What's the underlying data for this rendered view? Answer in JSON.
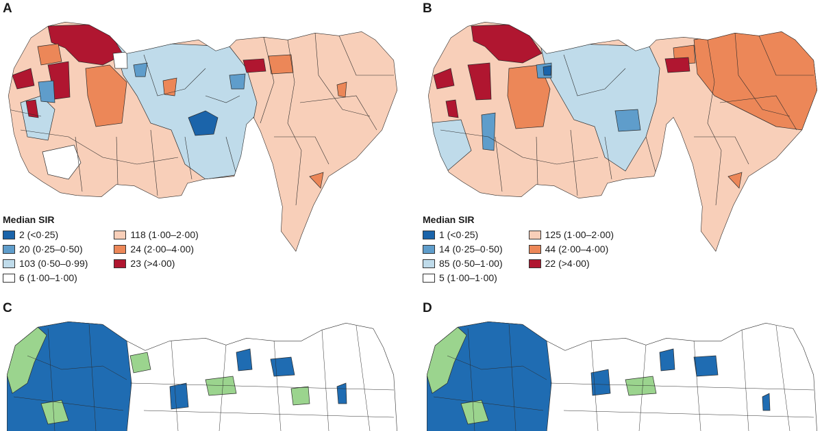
{
  "colors": {
    "very_low": "#1b64aa",
    "low": "#5f9dcb",
    "below": "#bfdbea",
    "neutral": "#ffffff",
    "above": "#f8cfb9",
    "high": "#ec8758",
    "very_high": "#b01630",
    "cluster_blue": "#1f6cb2",
    "cluster_green": "#9bd48e",
    "border": "#2a2a2a"
  },
  "panels": [
    {
      "letter": "A",
      "legend": {
        "title": "Median SIR",
        "items": [
          {
            "label": "2 (<0·25)",
            "color_key": "very_low"
          },
          {
            "label": "20 (0·25–0·50)",
            "color_key": "low"
          },
          {
            "label": "103 (0·50–0·99)",
            "color_key": "below"
          },
          {
            "label": "6 (1·00–1·00)",
            "color_key": "neutral"
          },
          {
            "label": "118 (1·00–2·00)",
            "color_key": "above"
          },
          {
            "label": "24 (2·00–4·00)",
            "color_key": "high"
          },
          {
            "label": "23 (>4·00)",
            "color_key": "very_high"
          }
        ]
      }
    },
    {
      "letter": "B",
      "legend": {
        "title": "Median SIR",
        "items": [
          {
            "label": "1 (<0·25)",
            "color_key": "very_low"
          },
          {
            "label": "14 (0·25–0·50)",
            "color_key": "low"
          },
          {
            "label": "85 (0·50–1·00)",
            "color_key": "below"
          },
          {
            "label": "5 (1·00–1·00)",
            "color_key": "neutral"
          },
          {
            "label": "125 (1·00–2·00)",
            "color_key": "above"
          },
          {
            "label": "44 (2·00–4·00)",
            "color_key": "high"
          },
          {
            "label": "22 (>4·00)",
            "color_key": "very_high"
          }
        ]
      }
    },
    {
      "letter": "C"
    },
    {
      "letter": "D"
    }
  ]
}
